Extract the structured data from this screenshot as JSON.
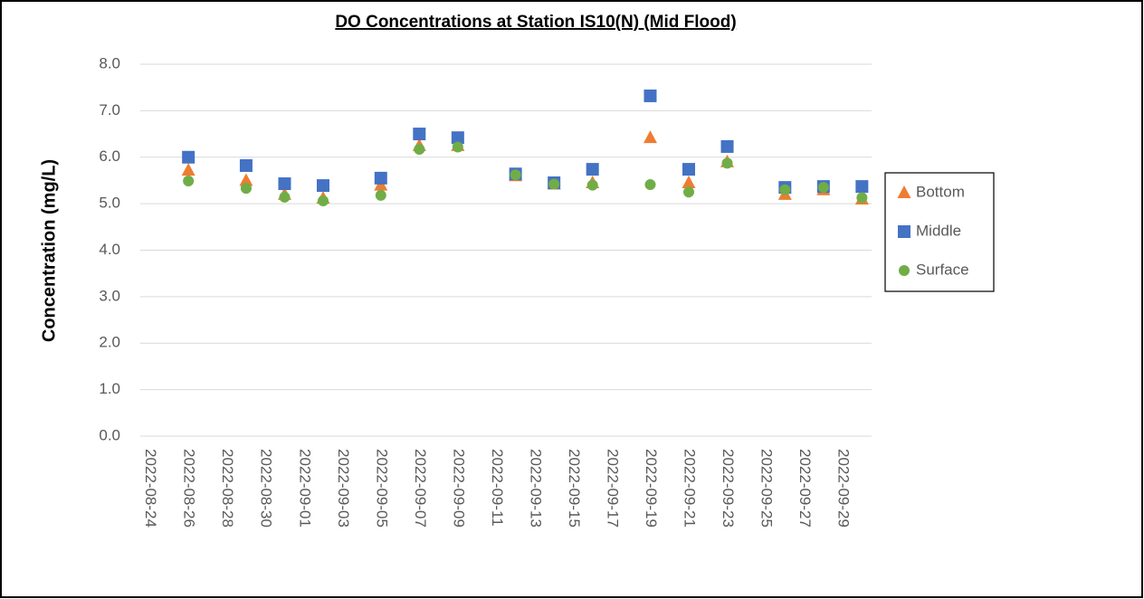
{
  "chart_data": {
    "type": "scatter",
    "title": "DO Concentrations at Station IS10(N) (Mid Flood)",
    "y_label": "Concentration (mg/L)",
    "x": [
      "2022-08-26",
      "2022-08-29",
      "2022-08-31",
      "2022-09-02",
      "2022-09-05",
      "2022-09-07",
      "2022-09-09",
      "2022-09-12",
      "2022-09-14",
      "2022-09-16",
      "2022-09-19",
      "2022-09-21",
      "2022-09-23",
      "2022-09-26",
      "2022-09-28",
      "2022-09-30"
    ],
    "series": [
      {
        "name": "Bottom",
        "color": "#ed7d31",
        "marker": "triangle",
        "values": [
          5.72,
          5.5,
          5.2,
          5.12,
          5.4,
          6.25,
          6.25,
          5.6,
          5.42,
          5.45,
          6.42,
          5.45,
          5.9,
          5.2,
          5.3,
          5.1
        ]
      },
      {
        "name": "Middle",
        "color": "#4472c4",
        "marker": "square",
        "values": [
          6.0,
          5.82,
          5.43,
          5.39,
          5.55,
          6.5,
          6.42,
          5.64,
          5.45,
          5.74,
          7.32,
          5.74,
          6.23,
          5.35,
          5.37,
          5.37
        ]
      },
      {
        "name": "Surface",
        "color": "#70ad47",
        "marker": "circle",
        "values": [
          5.49,
          5.33,
          5.14,
          5.06,
          5.18,
          6.17,
          6.22,
          5.62,
          5.42,
          5.4,
          5.41,
          5.25,
          5.87,
          5.3,
          5.35,
          5.13
        ]
      }
    ],
    "xlim": [
      "2022-08-24",
      "2022-09-30"
    ],
    "xticks": [
      "2022-08-24",
      "2022-08-26",
      "2022-08-28",
      "2022-08-30",
      "2022-09-01",
      "2022-09-03",
      "2022-09-05",
      "2022-09-07",
      "2022-09-09",
      "2022-09-11",
      "2022-09-13",
      "2022-09-15",
      "2022-09-17",
      "2022-09-19",
      "2022-09-21",
      "2022-09-23",
      "2022-09-25",
      "2022-09-27",
      "2022-09-29"
    ],
    "ylim": [
      0,
      8
    ],
    "yticks": [
      {
        "value": 0,
        "label": "0.0"
      },
      {
        "value": 1,
        "label": "1.0"
      },
      {
        "value": 2,
        "label": "2.0"
      },
      {
        "value": 3,
        "label": "3.0"
      },
      {
        "value": 4,
        "label": "4.0"
      },
      {
        "value": 5,
        "label": "5.0"
      },
      {
        "value": 6,
        "label": "6.0"
      },
      {
        "value": 7,
        "label": "7.0"
      },
      {
        "value": 8,
        "label": "8.0"
      }
    ],
    "grid": true,
    "legend": "right"
  }
}
